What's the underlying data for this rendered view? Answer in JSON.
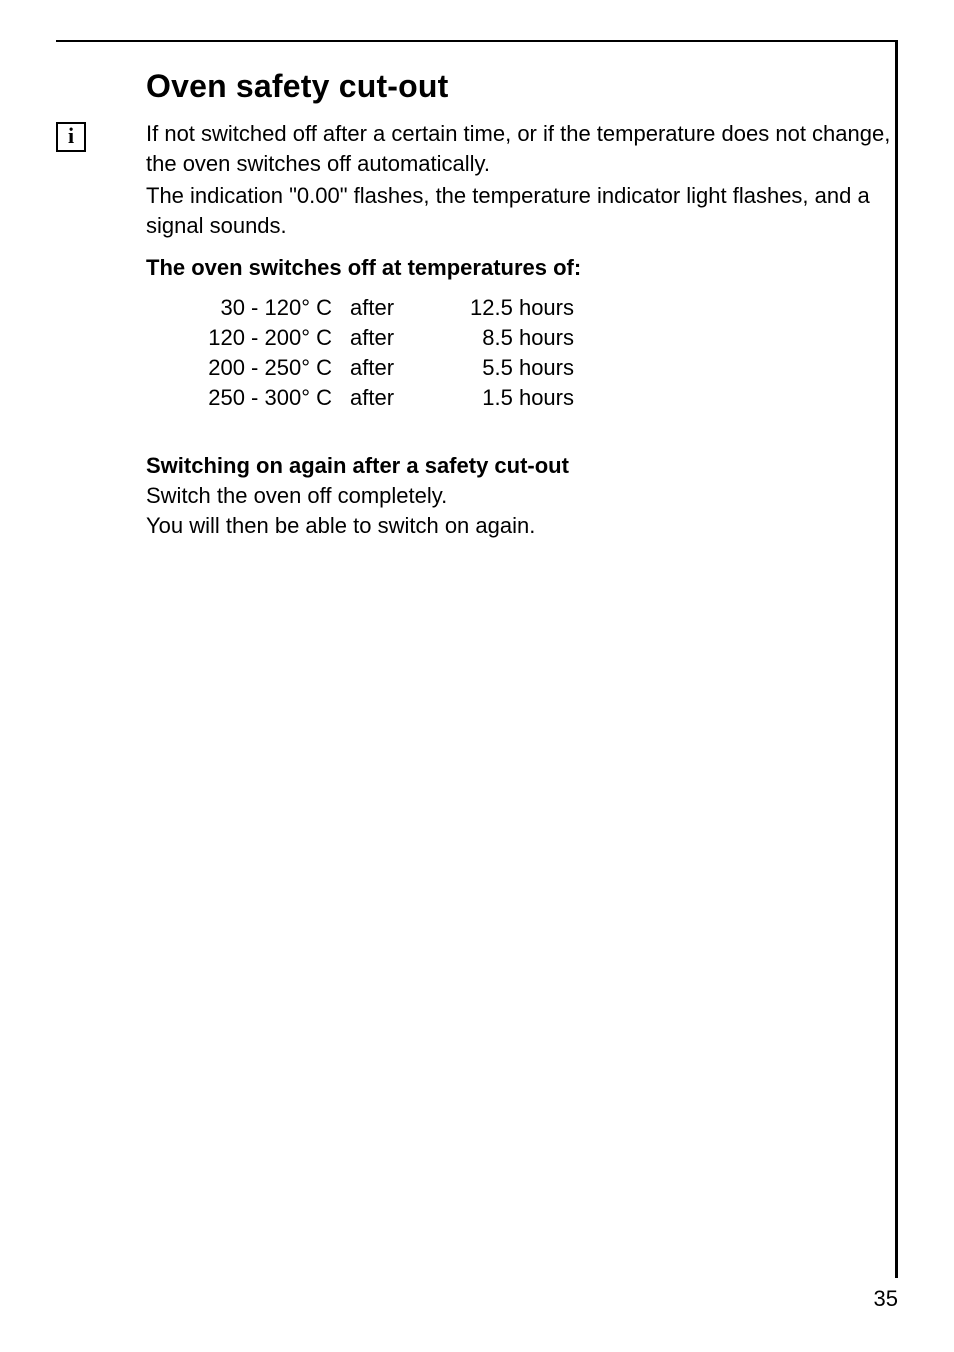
{
  "heading": "Oven safety cut-out",
  "info_icon": {
    "glyph": "i",
    "name": "info-icon"
  },
  "intro": {
    "p1": "If not switched off after a certain time, or if the temperature does not change,  the oven switches off automatically.",
    "p2": "The indication \"0.00\" flashes, the temperature indicator light flashes, and a signal sounds."
  },
  "table_heading": "The oven switches off at temperatures of:",
  "rows": [
    {
      "range": "30 - 120° C",
      "word": "after",
      "time": "12.5 hours"
    },
    {
      "range": "120 - 200° C",
      "word": "after",
      "time": "8.5 hours"
    },
    {
      "range": "200 - 250° C",
      "word": "after",
      "time": "5.5 hours"
    },
    {
      "range": "250 - 300° C",
      "word": "after",
      "time": "1.5 hours"
    }
  ],
  "restart": {
    "heading": "Switching on again after a safety cut-out",
    "l1": "Switch the oven off completely.",
    "l2": "You will then be able to switch on again."
  },
  "page_number": "35"
}
